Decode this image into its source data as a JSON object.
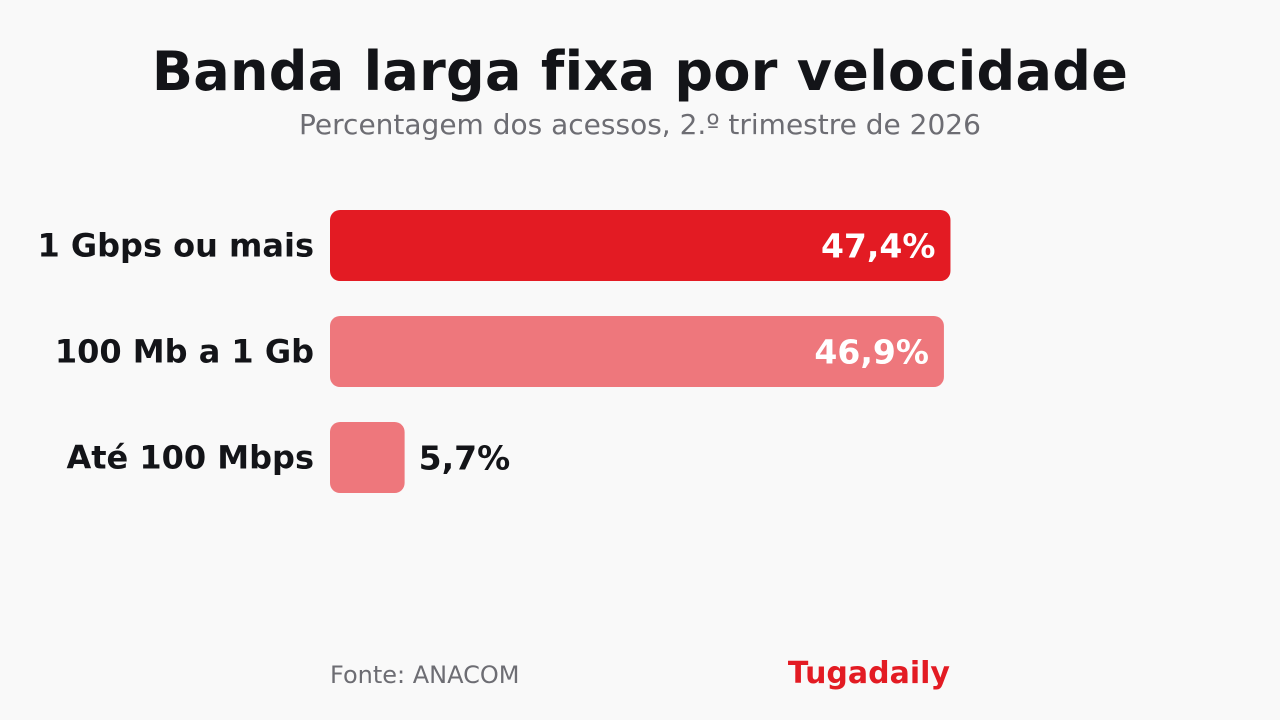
{
  "header": {
    "title": "Banda larga fixa por velocidade",
    "subtitle": "Percentagem dos acessos, 2.º trimestre de 2026"
  },
  "footer": {
    "source": "Fonte: ANACOM",
    "brand": "Tugadaily"
  },
  "colors": {
    "primary": "#e31b23",
    "secondary": "#ee777c",
    "inside_label": "#ffffff",
    "outside_label": "#131418"
  },
  "chart_data": {
    "type": "bar",
    "orientation": "horizontal",
    "categories": [
      "1 Gbps ou mais",
      "100 Mb a 1 Gb",
      "Até 100 Mbps"
    ],
    "values": [
      47.4,
      46.9,
      5.7
    ],
    "value_labels": [
      "47,4%",
      "46,9%",
      "5,7%"
    ],
    "xlim": [
      0,
      100
    ],
    "grid": false,
    "legend": "none"
  }
}
